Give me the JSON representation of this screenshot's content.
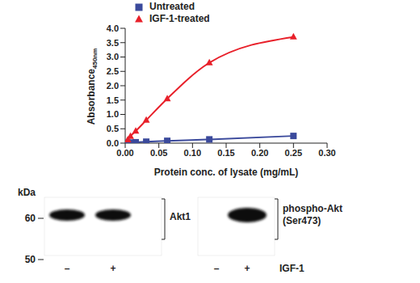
{
  "chart_data": {
    "type": "line",
    "x_label": "Protein conc. of lysate (mg/mL)",
    "y_label": "Absorbance",
    "y_label_subscript": "450nm",
    "xlim": [
      0,
      0.3
    ],
    "xticks": [
      {
        "value": 0,
        "label": "0.00"
      },
      {
        "value": 0.05,
        "label": "0.05"
      },
      {
        "value": 0.1,
        "label": "0.10"
      },
      {
        "value": 0.15,
        "label": "0.15"
      },
      {
        "value": 0.2,
        "label": "0.20"
      },
      {
        "value": 0.25,
        "label": "0.25"
      },
      {
        "value": 0.3,
        "label": "0.30"
      }
    ],
    "ylim": [
      0,
      4
    ],
    "yticks": [
      {
        "value": 0,
        "label": "0.0"
      },
      {
        "value": 0.5,
        "label": "0.5"
      },
      {
        "value": 1,
        "label": "1.0"
      },
      {
        "value": 1.5,
        "label": "1.5"
      },
      {
        "value": 2,
        "label": "2.0"
      },
      {
        "value": 2.5,
        "label": "2.5"
      },
      {
        "value": 3,
        "label": "3.0"
      },
      {
        "value": 3.5,
        "label": "3.5"
      },
      {
        "value": 4,
        "label": "4.0"
      }
    ],
    "grid": false,
    "legend": "top left",
    "series": [
      {
        "name": "Untreated",
        "color": "#3b4a9c",
        "marker": "square",
        "line_style": "solid",
        "x": [
          0.0039,
          0.0078,
          0.0156,
          0.0313,
          0.0625,
          0.125,
          0.25
        ],
        "values": [
          0.01,
          0.02,
          0.03,
          0.05,
          0.08,
          0.13,
          0.25
        ]
      },
      {
        "name": "IGF-1-treated",
        "color": "#e8202a",
        "marker": "triangle",
        "line_style": "solid",
        "x": [
          0.0039,
          0.0078,
          0.0156,
          0.0313,
          0.0625,
          0.125,
          0.25
        ],
        "values": [
          0.12,
          0.24,
          0.42,
          0.8,
          1.55,
          2.8,
          3.7
        ]
      }
    ]
  },
  "western_blot": {
    "unit": "kDa",
    "size_markers": [
      60,
      50
    ],
    "treatment": "IGF-1",
    "panels": [
      {
        "label": [
          "Akt1"
        ],
        "lanes": [
          {
            "label": "–",
            "band": true
          },
          {
            "label": "+",
            "band": true
          }
        ]
      },
      {
        "label": [
          "phospho-Akt",
          "(Ser473)"
        ],
        "lanes": [
          {
            "label": "–",
            "band": false
          },
          {
            "label": "+",
            "band": true
          }
        ]
      }
    ]
  }
}
